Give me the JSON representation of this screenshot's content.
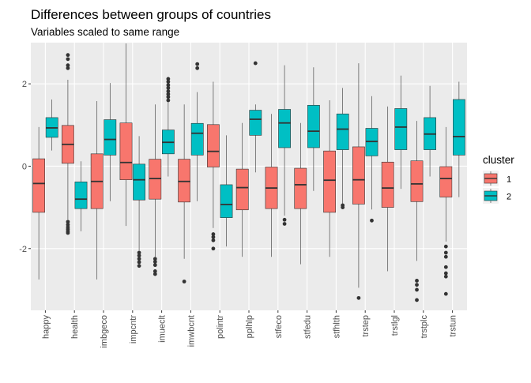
{
  "chart_data": {
    "type": "boxplot",
    "title": "Differences between groups of countries",
    "subtitle": "Variables scaled to same range",
    "xlabel": "",
    "ylabel": "",
    "ylim": [
      -3.5,
      3.0
    ],
    "yticks": [
      -2,
      0,
      2
    ],
    "ytick_labels": [
      "-2",
      "0",
      "2"
    ],
    "grid": true,
    "legend": {
      "title": "cluster",
      "position": "right",
      "entries": [
        {
          "label": "1",
          "color": "#F8766D"
        },
        {
          "label": "2",
          "color": "#00BFC4"
        }
      ]
    },
    "categories": [
      "happy",
      "health",
      "imbgeco",
      "impcntr",
      "imueclt",
      "imwbcnt",
      "polintr",
      "pplhlp",
      "stfeco",
      "stfedu",
      "stfhlth",
      "trstep",
      "trstlgl",
      "trstplc",
      "trstun"
    ],
    "series": [
      {
        "name": "1",
        "color": "#F8766D",
        "boxes": [
          {
            "whisker_low": -2.75,
            "q1": -1.12,
            "median": -0.42,
            "q3": 0.18,
            "whisker_high": 0.95,
            "outliers": []
          },
          {
            "whisker_low": -1.3,
            "q1": 0.07,
            "median": 0.53,
            "q3": 0.99,
            "whisker_high": 2.1,
            "outliers": [
              2.7,
              2.6,
              2.45,
              2.38,
              -1.35,
              -1.42,
              -1.48,
              -1.53,
              -1.58,
              -1.62
            ]
          },
          {
            "whisker_low": -2.75,
            "q1": -1.03,
            "median": -0.37,
            "q3": 0.3,
            "whisker_high": 1.58,
            "outliers": []
          },
          {
            "whisker_low": -1.45,
            "q1": -0.33,
            "median": 0.09,
            "q3": 1.05,
            "whisker_high": 2.98,
            "outliers": []
          },
          {
            "whisker_low": -2.2,
            "q1": -0.8,
            "median": -0.3,
            "q3": 0.17,
            "whisker_high": 1.5,
            "outliers": [
              -2.25,
              -2.32,
              -2.4,
              -2.55,
              -2.62
            ]
          },
          {
            "whisker_low": -2.25,
            "q1": -0.87,
            "median": -0.37,
            "q3": 0.17,
            "whisker_high": 1.5,
            "outliers": [
              -2.8
            ]
          },
          {
            "whisker_low": -1.5,
            "q1": -0.02,
            "median": 0.36,
            "q3": 1.01,
            "whisker_high": 2.05,
            "outliers": [
              -1.65,
              -1.72,
              -1.8,
              -2.0
            ]
          },
          {
            "whisker_low": -2.2,
            "q1": -1.06,
            "median": -0.52,
            "q3": -0.07,
            "whisker_high": 1.05,
            "outliers": []
          },
          {
            "whisker_low": -2.2,
            "q1": -1.03,
            "median": -0.53,
            "q3": -0.02,
            "whisker_high": 1.27,
            "outliers": []
          },
          {
            "whisker_low": -2.38,
            "q1": -1.03,
            "median": -0.45,
            "q3": -0.05,
            "whisker_high": 1.05,
            "outliers": []
          },
          {
            "whisker_low": -2.2,
            "q1": -1.12,
            "median": -0.34,
            "q3": 0.37,
            "whisker_high": 1.6,
            "outliers": []
          },
          {
            "whisker_low": -2.95,
            "q1": -0.92,
            "median": -0.33,
            "q3": 0.47,
            "whisker_high": 2.5,
            "outliers": [
              -3.2
            ]
          },
          {
            "whisker_low": -2.55,
            "q1": -1.0,
            "median": -0.53,
            "q3": 0.1,
            "whisker_high": 1.45,
            "outliers": []
          },
          {
            "whisker_low": -2.3,
            "q1": -0.86,
            "median": -0.43,
            "q3": 0.13,
            "whisker_high": 1.1,
            "outliers": [
              -2.78,
              -2.88,
              -3.0,
              -3.25
            ]
          },
          {
            "whisker_low": -1.83,
            "q1": -0.75,
            "median": -0.3,
            "q3": -0.01,
            "whisker_high": 0.95,
            "outliers": [
              -1.95,
              -2.1,
              -2.2,
              -2.45,
              -2.6,
              -2.68,
              -3.1
            ]
          }
        ]
      },
      {
        "name": "2",
        "color": "#00BFC4",
        "boxes": [
          {
            "whisker_low": 0.38,
            "q1": 0.7,
            "median": 0.93,
            "q3": 1.18,
            "whisker_high": 1.62,
            "outliers": []
          },
          {
            "whisker_low": -1.58,
            "q1": -1.03,
            "median": -0.8,
            "q3": -0.38,
            "whisker_high": 0.12,
            "outliers": []
          },
          {
            "whisker_low": -0.85,
            "q1": 0.27,
            "median": 0.65,
            "q3": 1.13,
            "whisker_high": 2.02,
            "outliers": []
          },
          {
            "whisker_low": -2.05,
            "q1": -0.82,
            "median": -0.33,
            "q3": 0.05,
            "whisker_high": 0.73,
            "outliers": [
              -2.1,
              -2.17,
              -2.25,
              -2.33,
              -2.42
            ]
          },
          {
            "whisker_low": -0.25,
            "q1": 0.3,
            "median": 0.58,
            "q3": 0.88,
            "whisker_high": 1.55,
            "outliers": [
              1.6,
              1.68,
              1.75,
              1.82,
              1.9,
              1.97,
              2.05,
              2.12
            ]
          },
          {
            "whisker_low": -0.85,
            "q1": 0.27,
            "median": 0.8,
            "q3": 1.04,
            "whisker_high": 1.8,
            "outliers": [
              2.38,
              2.48
            ]
          },
          {
            "whisker_low": -1.95,
            "q1": -1.25,
            "median": -0.93,
            "q3": -0.45,
            "whisker_high": 0.75,
            "outliers": []
          },
          {
            "whisker_low": -0.15,
            "q1": 0.75,
            "median": 1.14,
            "q3": 1.36,
            "whisker_high": 1.5,
            "outliers": [
              2.5
            ]
          },
          {
            "whisker_low": -1.2,
            "q1": 0.45,
            "median": 1.05,
            "q3": 1.38,
            "whisker_high": 2.45,
            "outliers": [
              -1.3,
              -1.4
            ]
          },
          {
            "whisker_low": -0.6,
            "q1": 0.45,
            "median": 0.85,
            "q3": 1.48,
            "whisker_high": 2.4,
            "outliers": []
          },
          {
            "whisker_low": -0.95,
            "q1": 0.4,
            "median": 0.9,
            "q3": 1.27,
            "whisker_high": 1.9,
            "outliers": [
              -0.95,
              -1.0
            ]
          },
          {
            "whisker_low": -1.05,
            "q1": 0.25,
            "median": 0.6,
            "q3": 0.92,
            "whisker_high": 1.7,
            "outliers": [
              -1.32
            ]
          },
          {
            "whisker_low": -0.55,
            "q1": 0.4,
            "median": 0.95,
            "q3": 1.4,
            "whisker_high": 2.2,
            "outliers": []
          },
          {
            "whisker_low": -0.25,
            "q1": 0.4,
            "median": 0.78,
            "q3": 1.18,
            "whisker_high": 1.95,
            "outliers": []
          },
          {
            "whisker_low": -0.75,
            "q1": 0.27,
            "median": 0.72,
            "q3": 1.62,
            "whisker_high": 2.05,
            "outliers": []
          }
        ]
      }
    ]
  }
}
